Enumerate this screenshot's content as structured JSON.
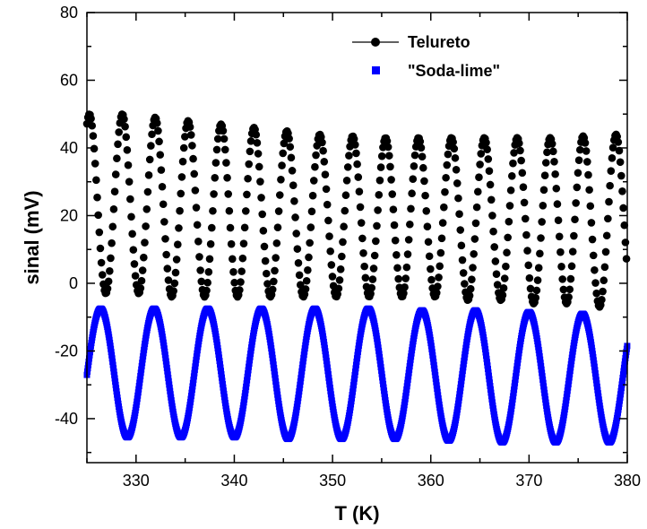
{
  "chart_data": {
    "type": "scatter",
    "title": "",
    "xlabel": "T (K)",
    "ylabel": "sinal (mV)",
    "xlim": [
      325,
      380
    ],
    "ylim": [
      -53,
      80
    ],
    "xticks": [
      330,
      340,
      350,
      360,
      370,
      380
    ],
    "yticks": [
      -40,
      -20,
      0,
      20,
      40,
      60,
      80
    ],
    "x_minor_step": 5,
    "y_minor_step": 10,
    "grid": false,
    "legend_position": "top-right",
    "series": [
      {
        "name": "Telureto",
        "marker": "circle-with-line",
        "color": "#000000",
        "period_K": 3.35,
        "first_peak_x": 328.6,
        "peak_values": [
          50,
          49,
          48,
          47,
          46,
          45,
          44,
          43.5,
          43,
          43,
          43,
          43,
          43,
          43,
          43.5,
          44,
          45
        ],
        "trough_values": [
          -3,
          -3,
          -4,
          -4,
          -4,
          -4,
          -4,
          -4,
          -4,
          -4,
          -4,
          -5,
          -5,
          -6,
          -6,
          -7,
          -8,
          -9
        ],
        "x_range": [
          325,
          380
        ]
      },
      {
        "name": "\"Soda-lime\"",
        "marker": "square",
        "color": "#0000ff",
        "period_K": 5.45,
        "first_peak_x": 326.4,
        "peak_values": [
          -7.5,
          -7.5,
          -7.5,
          -7.5,
          -7.5,
          -7.5,
          -8,
          -8,
          -8.5,
          -9,
          -9
        ],
        "trough_values": [
          -45,
          -45.5,
          -45.5,
          -45.5,
          -46,
          -46,
          -46,
          -46.5,
          -47,
          -47
        ],
        "x_range": [
          325,
          380
        ]
      }
    ]
  }
}
